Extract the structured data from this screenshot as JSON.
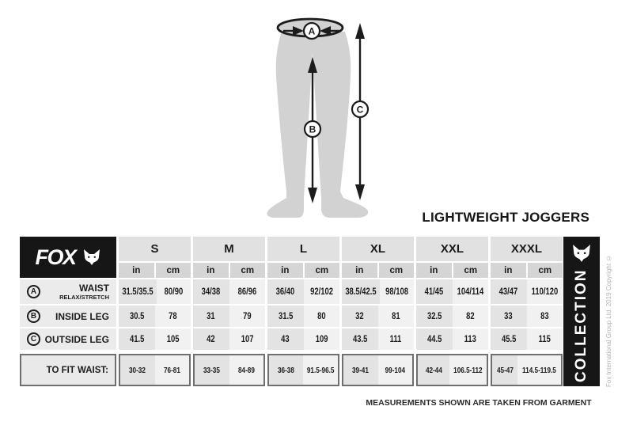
{
  "page": {
    "title": "LIGHTWEIGHT JOGGERS",
    "footnote": "MEASUREMENTS SHOWN ARE TAKEN FROM GARMENT",
    "copyright": "Fox International Group Ltd. 2019 Copyright ©"
  },
  "brand": {
    "logo_text": "FOX",
    "logo_icon": "fox-head-icon",
    "collection_label": "COLLECTION"
  },
  "diagram": {
    "garment": "joggers-silhouette",
    "markers": {
      "waist": "A",
      "inside_leg": "B",
      "outside_leg": "C"
    }
  },
  "size_table": {
    "sizes": [
      "S",
      "M",
      "L",
      "XL",
      "XXL",
      "XXXL"
    ],
    "unit_headers": [
      "in",
      "cm"
    ],
    "rows": [
      {
        "marker": "A",
        "label": "WAIST",
        "sublabel": "RELAX/STRETCH",
        "values": [
          "31.5/35.5",
          "80/90",
          "34/38",
          "86/96",
          "36/40",
          "92/102",
          "38.5/42.5",
          "98/108",
          "41/45",
          "104/114",
          "43/47",
          "110/120"
        ]
      },
      {
        "marker": "B",
        "label": "INSIDE LEG",
        "sublabel": "",
        "values": [
          "30.5",
          "78",
          "31",
          "79",
          "31.5",
          "80",
          "32",
          "81",
          "32.5",
          "82",
          "33",
          "83"
        ]
      },
      {
        "marker": "C",
        "label": "OUTSIDE LEG",
        "sublabel": "",
        "values": [
          "41.5",
          "105",
          "42",
          "107",
          "43",
          "109",
          "43.5",
          "111",
          "44.5",
          "113",
          "45.5",
          "115"
        ]
      }
    ],
    "fit_row": {
      "label": "TO FIT WAIST:",
      "values": [
        "30-32",
        "76-81",
        "33-35",
        "84-89",
        "36-38",
        "91.5-96.5",
        "39-41",
        "99-104",
        "42-44",
        "106.5-112",
        "45-47",
        "114.5-119.5"
      ]
    }
  },
  "colors": {
    "black": "#161616",
    "silhouette": "#d2d2d2",
    "size_header_bg": "#e1e1e1",
    "unit_header_bg": "#d5d5d5",
    "label_col_bg": "#ebebeb",
    "in_cell_bg": "#e3e3e3",
    "cm_cell_bg": "#f1f1f1",
    "fit_border": "#6f6f6f",
    "copyright_text": "#b3b3b3"
  }
}
